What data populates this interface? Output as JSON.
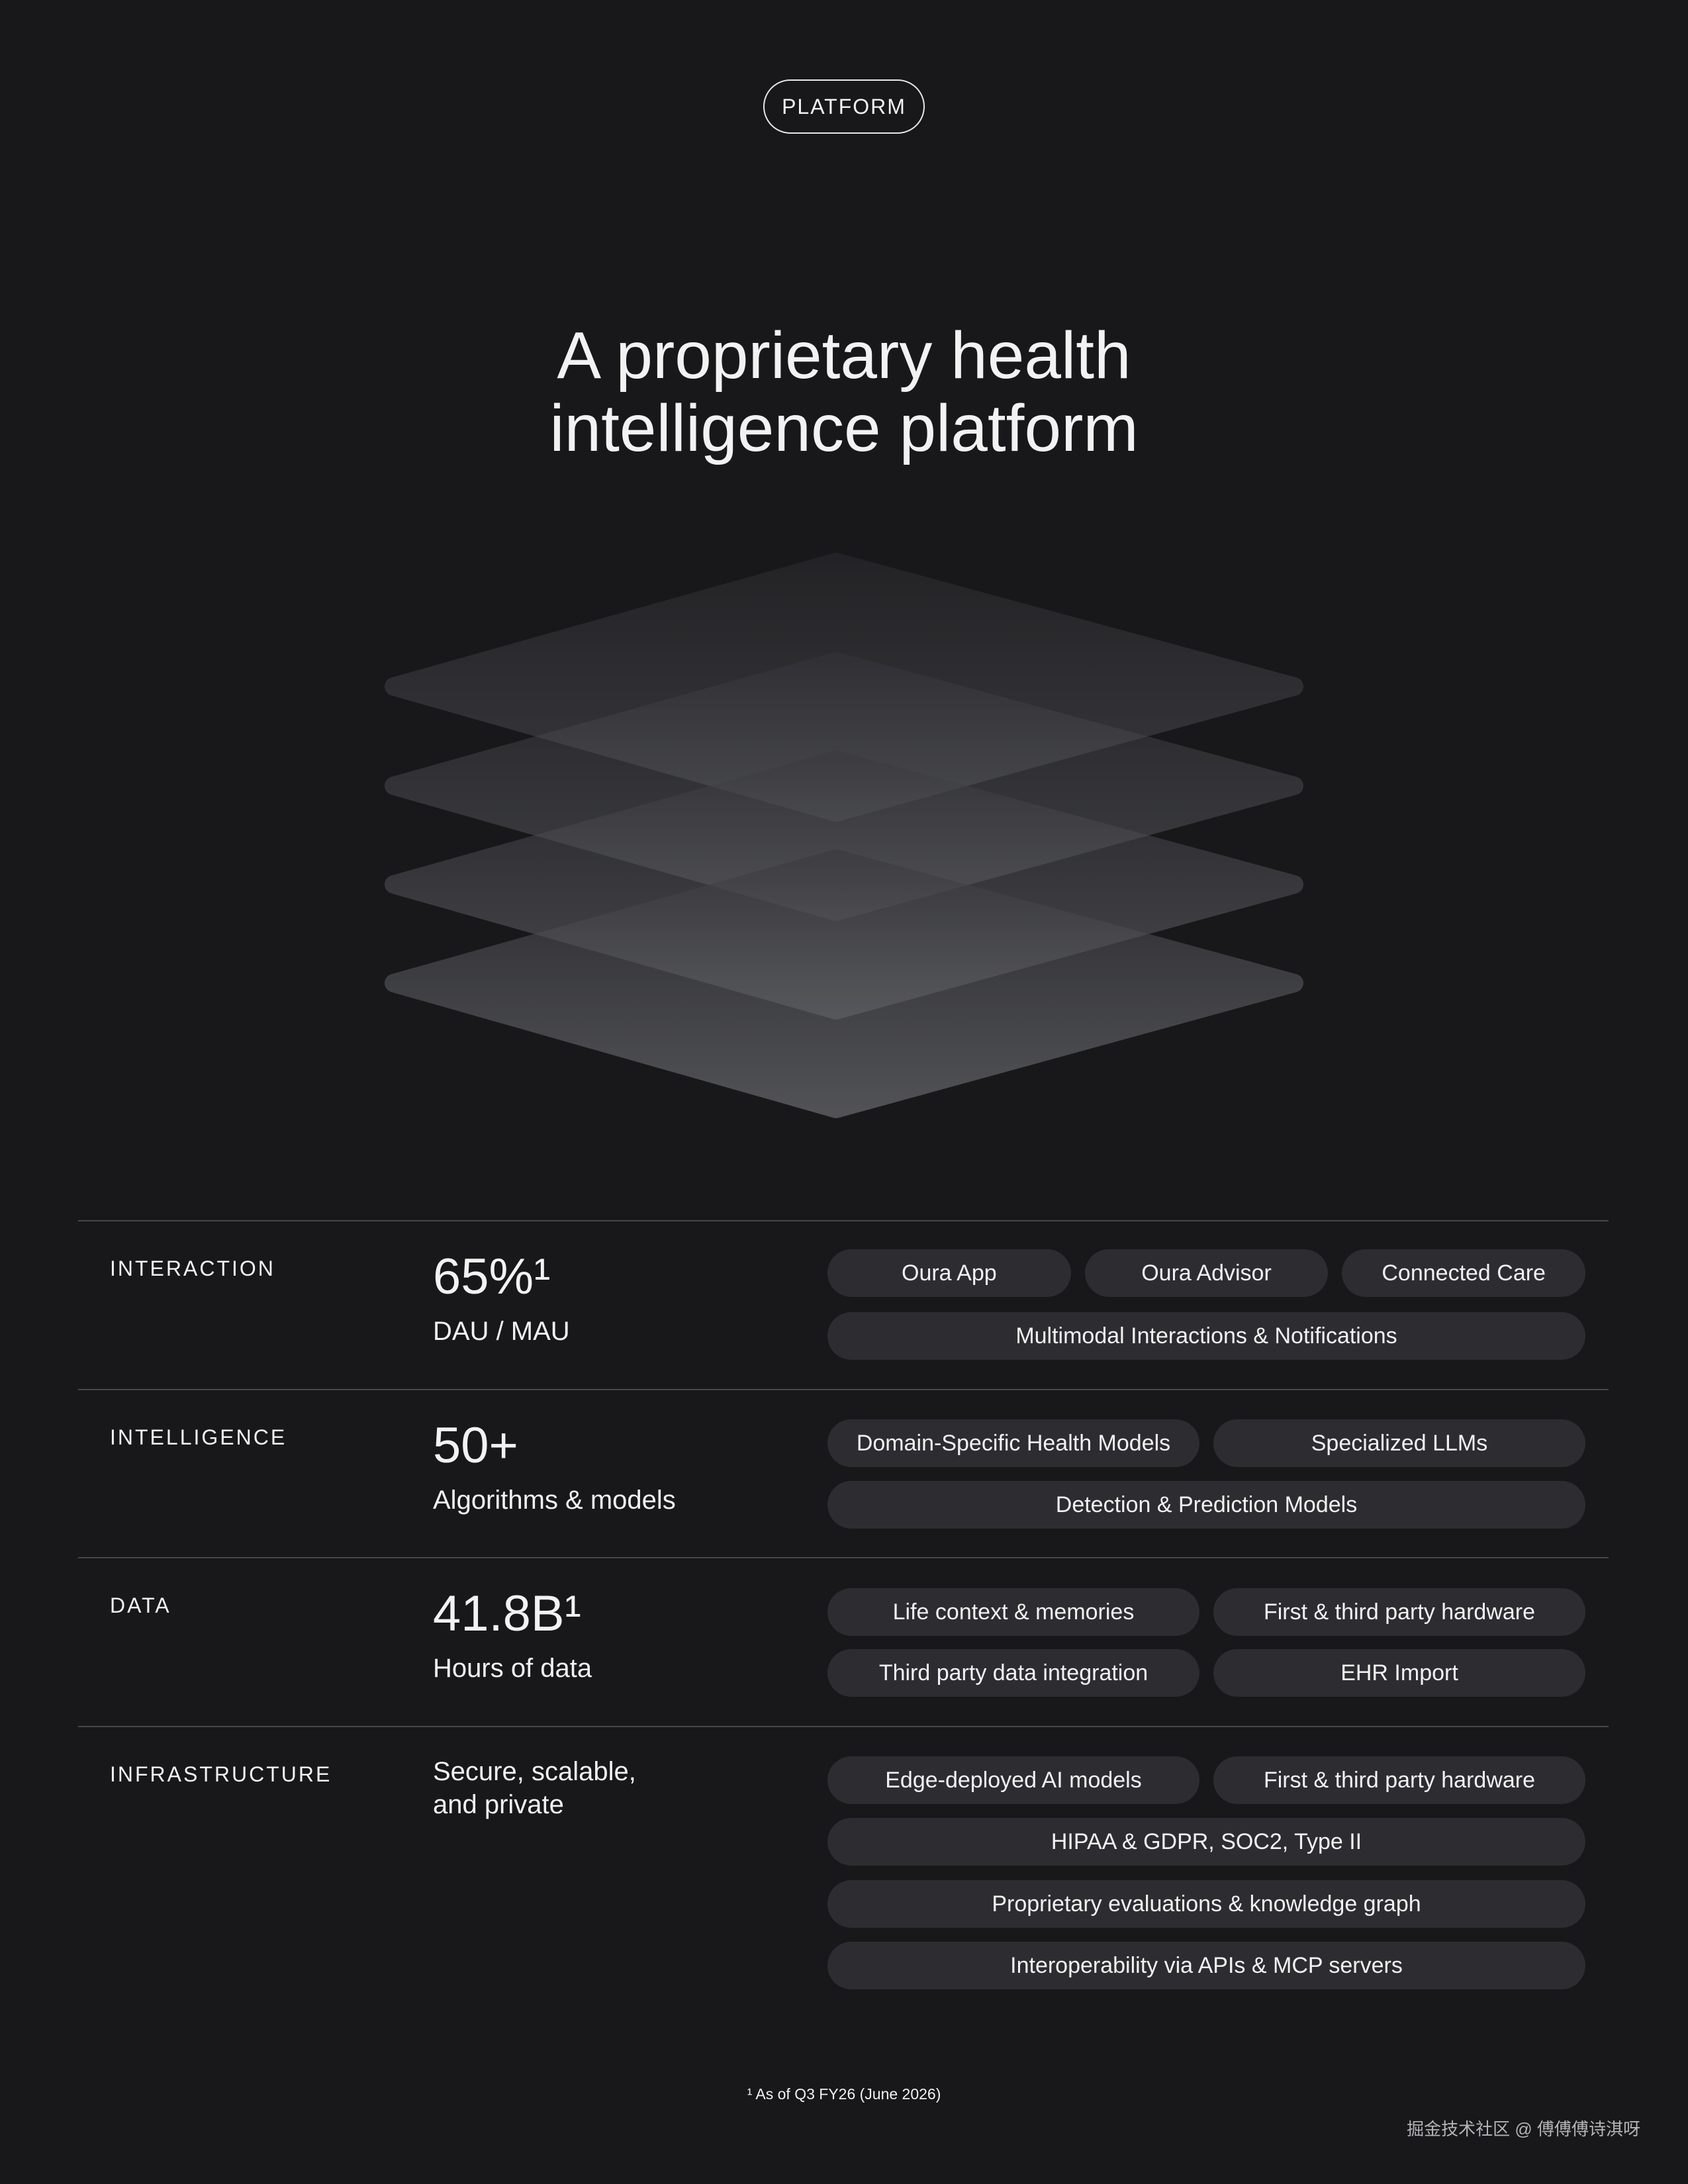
{
  "badge": "PLATFORM",
  "title": [
    "A proprietary health",
    "intelligence platform"
  ],
  "rows": [
    {
      "label": "INTERACTION",
      "stat": "65%¹",
      "caption": "DAU / MAU",
      "pills": [
        [
          "Oura App",
          "Oura Advisor",
          "Connected Care"
        ],
        [
          "Multimodal Interactions & Notifications"
        ]
      ]
    },
    {
      "label": "INTELLIGENCE",
      "stat": "50+",
      "caption": "Algorithms & models",
      "pills": [
        [
          "Domain-Specific Health Models",
          "Specialized LLMs"
        ],
        [
          "Detection & Prediction Models"
        ]
      ]
    },
    {
      "label": "DATA",
      "stat": "41.8B¹",
      "caption": "Hours of data",
      "pills": [
        [
          "Life context & memories",
          "First & third party hardware"
        ],
        [
          "Third party data integration",
          "EHR Import"
        ]
      ]
    },
    {
      "label": "INFRASTRUCTURE",
      "caption": "Secure, scalable, and private",
      "pills": [
        [
          "Edge-deployed AI models",
          "First & third party hardware"
        ],
        [
          "HIPAA & GDPR, SOC2, Type II"
        ],
        [
          "Proprietary evaluations & knowledge graph"
        ],
        [
          "Interoperability via APIs & MCP servers"
        ]
      ]
    }
  ],
  "footnote": "¹ As of Q3 FY26 (June 2026)",
  "watermark": "掘金技术社区 @ 傅傅傅诗淇呀"
}
